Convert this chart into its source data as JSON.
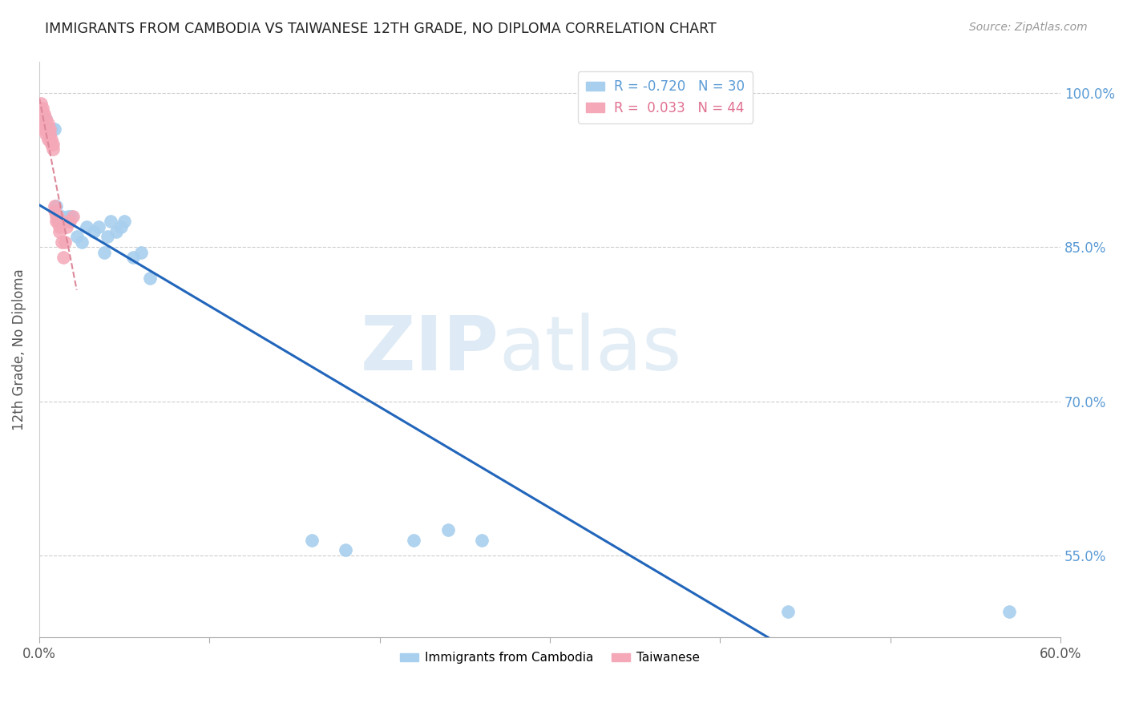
{
  "title": "IMMIGRANTS FROM CAMBODIA VS TAIWANESE 12TH GRADE, NO DIPLOMA CORRELATION CHART",
  "source": "Source: ZipAtlas.com",
  "ylabel": "12th Grade, No Diploma",
  "legend_R": [
    -0.72,
    0.033
  ],
  "legend_N": [
    30,
    44
  ],
  "xlim": [
    0.0,
    0.6
  ],
  "ylim": [
    0.47,
    1.03
  ],
  "xticks": [
    0.0,
    0.1,
    0.2,
    0.3,
    0.4,
    0.5,
    0.6
  ],
  "yticks": [
    0.55,
    0.7,
    0.85,
    1.0
  ],
  "ytick_labels": [
    "55.0%",
    "70.0%",
    "85.0%",
    "100.0%"
  ],
  "watermark_zip": "ZIP",
  "watermark_atlas": "atlas",
  "blue_color": "#A8CFEE",
  "pink_color": "#F4A8B8",
  "blue_line_color": "#2266BB",
  "pink_line_color": "#DD8899",
  "cambodia_x": [
    0.004,
    0.007,
    0.009,
    0.01,
    0.012,
    0.013,
    0.015,
    0.017,
    0.019,
    0.022,
    0.025,
    0.028,
    0.032,
    0.035,
    0.038,
    0.04,
    0.042,
    0.045,
    0.048,
    0.05,
    0.055,
    0.06,
    0.065,
    0.16,
    0.18,
    0.22,
    0.24,
    0.26,
    0.44,
    0.57
  ],
  "cambodia_y": [
    0.975,
    0.965,
    0.965,
    0.89,
    0.875,
    0.88,
    0.875,
    0.88,
    0.88,
    0.86,
    0.855,
    0.87,
    0.865,
    0.87,
    0.845,
    0.86,
    0.875,
    0.865,
    0.87,
    0.875,
    0.84,
    0.845,
    0.82,
    0.565,
    0.555,
    0.565,
    0.575,
    0.565,
    0.495,
    0.495
  ],
  "taiwanese_x": [
    0.001,
    0.001,
    0.001,
    0.001,
    0.002,
    0.002,
    0.002,
    0.002,
    0.002,
    0.003,
    0.003,
    0.003,
    0.003,
    0.003,
    0.004,
    0.004,
    0.004,
    0.004,
    0.005,
    0.005,
    0.005,
    0.005,
    0.006,
    0.006,
    0.006,
    0.007,
    0.007,
    0.008,
    0.008,
    0.009,
    0.009,
    0.01,
    0.01,
    0.011,
    0.011,
    0.012,
    0.012,
    0.013,
    0.014,
    0.015,
    0.016,
    0.017,
    0.018,
    0.02
  ],
  "taiwanese_y": [
    0.975,
    0.98,
    0.985,
    0.99,
    0.97,
    0.975,
    0.975,
    0.98,
    0.985,
    0.965,
    0.97,
    0.975,
    0.975,
    0.98,
    0.96,
    0.965,
    0.97,
    0.975,
    0.955,
    0.96,
    0.965,
    0.97,
    0.955,
    0.96,
    0.965,
    0.95,
    0.955,
    0.945,
    0.95,
    0.885,
    0.89,
    0.875,
    0.88,
    0.875,
    0.88,
    0.865,
    0.87,
    0.855,
    0.84,
    0.855,
    0.87,
    0.875,
    0.875,
    0.88
  ]
}
